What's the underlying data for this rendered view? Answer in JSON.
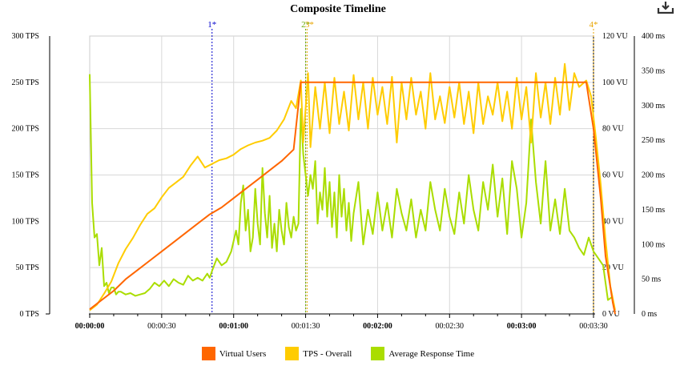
{
  "chart_data": {
    "type": "line",
    "title": "Composite Timeline",
    "x_axis": {
      "unit": "seconds",
      "range": [
        0,
        210
      ],
      "ticks": [
        {
          "value": 0,
          "label": "00:00:00",
          "bold": true
        },
        {
          "value": 30,
          "label": "00:00:30",
          "bold": false
        },
        {
          "value": 60,
          "label": "00:01:00",
          "bold": true
        },
        {
          "value": 90,
          "label": "00:01:30",
          "bold": false
        },
        {
          "value": 120,
          "label": "00:02:00",
          "bold": true
        },
        {
          "value": 150,
          "label": "00:02:30",
          "bold": false
        },
        {
          "value": 180,
          "label": "00:03:00",
          "bold": true
        },
        {
          "value": 210,
          "label": "00:03:30",
          "bold": false
        }
      ]
    },
    "y_axes": {
      "tps": {
        "range": [
          0,
          300
        ],
        "ticks": [
          "0 TPS",
          "50 TPS",
          "100 TPS",
          "150 TPS",
          "200 TPS",
          "250 TPS",
          "300 TPS"
        ]
      },
      "vu": {
        "range": [
          0,
          120
        ],
        "ticks": [
          "0 VU",
          "20 VU",
          "40 VU",
          "60 VU",
          "80 VU",
          "100 VU",
          "120 VU"
        ]
      },
      "ms": {
        "range": [
          0,
          400
        ],
        "ticks": [
          "0 ms",
          "50 ms",
          "100 ms",
          "150 ms",
          "200 ms",
          "250 ms",
          "300 ms",
          "350 ms",
          "400 ms"
        ]
      }
    },
    "markers": [
      {
        "label": "1*",
        "x": 51,
        "color": "#0000cc"
      },
      {
        "label": "2*",
        "x": 90,
        "color": "#66aa00"
      },
      {
        "label": "3*",
        "x": 90.6,
        "color": "#e8a400"
      },
      {
        "label": "4*",
        "x": 210,
        "color": "#e8a400"
      }
    ],
    "series": [
      {
        "name": "Virtual Users",
        "axis": "vu",
        "color": "#ff6600",
        "points": [
          [
            0,
            2
          ],
          [
            5,
            6
          ],
          [
            10,
            10
          ],
          [
            15,
            15
          ],
          [
            20,
            19
          ],
          [
            25,
            23
          ],
          [
            30,
            27
          ],
          [
            35,
            31
          ],
          [
            40,
            35
          ],
          [
            45,
            39
          ],
          [
            50,
            43
          ],
          [
            55,
            46
          ],
          [
            60,
            50
          ],
          [
            65,
            54
          ],
          [
            70,
            58
          ],
          [
            75,
            62
          ],
          [
            80,
            66
          ],
          [
            85,
            71
          ],
          [
            88,
            100
          ],
          [
            140,
            100
          ],
          [
            200,
            100
          ],
          [
            207,
            100
          ],
          [
            210,
            80
          ],
          [
            213,
            50
          ],
          [
            215,
            25
          ],
          [
            218,
            5
          ],
          [
            219,
            0
          ]
        ]
      },
      {
        "name": "TPS - Overall",
        "axis": "tps",
        "color": "#ffcc00",
        "points": [
          [
            0,
            4
          ],
          [
            3,
            10
          ],
          [
            6,
            22
          ],
          [
            9,
            35
          ],
          [
            12,
            55
          ],
          [
            15,
            70
          ],
          [
            18,
            82
          ],
          [
            21,
            96
          ],
          [
            24,
            108
          ],
          [
            27,
            114
          ],
          [
            30,
            126
          ],
          [
            33,
            136
          ],
          [
            36,
            142
          ],
          [
            39,
            148
          ],
          [
            42,
            160
          ],
          [
            45,
            170
          ],
          [
            48,
            158
          ],
          [
            51,
            162
          ],
          [
            54,
            166
          ],
          [
            57,
            168
          ],
          [
            60,
            172
          ],
          [
            63,
            178
          ],
          [
            66,
            182
          ],
          [
            69,
            185
          ],
          [
            72,
            187
          ],
          [
            75,
            190
          ],
          [
            78,
            198
          ],
          [
            81,
            210
          ],
          [
            84,
            230
          ],
          [
            86,
            222
          ],
          [
            88,
            252
          ],
          [
            89,
            185
          ],
          [
            91,
            260
          ],
          [
            92,
            180
          ],
          [
            94,
            245
          ],
          [
            96,
            200
          ],
          [
            98,
            250
          ],
          [
            100,
            195
          ],
          [
            102,
            255
          ],
          [
            104,
            205
          ],
          [
            106,
            240
          ],
          [
            108,
            198
          ],
          [
            110,
            258
          ],
          [
            112,
            210
          ],
          [
            114,
            250
          ],
          [
            116,
            200
          ],
          [
            118,
            255
          ],
          [
            120,
            215
          ],
          [
            122,
            245
          ],
          [
            124,
            205
          ],
          [
            126,
            256
          ],
          [
            128,
            185
          ],
          [
            130,
            250
          ],
          [
            132,
            210
          ],
          [
            134,
            255
          ],
          [
            136,
            215
          ],
          [
            138,
            240
          ],
          [
            140,
            200
          ],
          [
            142,
            260
          ],
          [
            144,
            210
          ],
          [
            146,
            235
          ],
          [
            148,
            206
          ],
          [
            150,
            245
          ],
          [
            152,
            212
          ],
          [
            154,
            250
          ],
          [
            156,
            205
          ],
          [
            158,
            240
          ],
          [
            160,
            195
          ],
          [
            162,
            250
          ],
          [
            164,
            205
          ],
          [
            166,
            235
          ],
          [
            168,
            215
          ],
          [
            170,
            250
          ],
          [
            172,
            208
          ],
          [
            174,
            240
          ],
          [
            176,
            200
          ],
          [
            178,
            255
          ],
          [
            180,
            210
          ],
          [
            182,
            245
          ],
          [
            184,
            185
          ],
          [
            186,
            260
          ],
          [
            188,
            212
          ],
          [
            190,
            250
          ],
          [
            192,
            205
          ],
          [
            194,
            255
          ],
          [
            196,
            215
          ],
          [
            198,
            270
          ],
          [
            200,
            220
          ],
          [
            202,
            260
          ],
          [
            204,
            245
          ],
          [
            207,
            252
          ],
          [
            209,
            235
          ],
          [
            211,
            190
          ],
          [
            213,
            140
          ],
          [
            215,
            80
          ],
          [
            217,
            30
          ],
          [
            219,
            4
          ]
        ]
      },
      {
        "name": "Average Response Time",
        "axis": "ms",
        "color": "#aadd00",
        "points": [
          [
            0,
            345
          ],
          [
            1,
            160
          ],
          [
            2,
            110
          ],
          [
            3,
            115
          ],
          [
            4,
            70
          ],
          [
            5,
            95
          ],
          [
            6,
            40
          ],
          [
            7,
            45
          ],
          [
            8,
            30
          ],
          [
            9,
            38
          ],
          [
            10,
            38
          ],
          [
            11,
            28
          ],
          [
            12,
            32
          ],
          [
            13,
            32
          ],
          [
            15,
            28
          ],
          [
            17,
            30
          ],
          [
            19,
            26
          ],
          [
            21,
            28
          ],
          [
            23,
            30
          ],
          [
            25,
            36
          ],
          [
            27,
            45
          ],
          [
            29,
            40
          ],
          [
            31,
            48
          ],
          [
            33,
            40
          ],
          [
            35,
            50
          ],
          [
            37,
            45
          ],
          [
            39,
            42
          ],
          [
            41,
            55
          ],
          [
            43,
            48
          ],
          [
            45,
            52
          ],
          [
            47,
            48
          ],
          [
            49,
            58
          ],
          [
            50,
            52
          ],
          [
            51,
            62
          ],
          [
            53,
            80
          ],
          [
            55,
            70
          ],
          [
            57,
            75
          ],
          [
            59,
            90
          ],
          [
            61,
            120
          ],
          [
            62,
            100
          ],
          [
            63,
            160
          ],
          [
            64,
            185
          ],
          [
            65,
            120
          ],
          [
            66,
            150
          ],
          [
            67,
            90
          ],
          [
            68,
            110
          ],
          [
            69,
            180
          ],
          [
            70,
            130
          ],
          [
            71,
            100
          ],
          [
            72,
            210
          ],
          [
            73,
            145
          ],
          [
            74,
            110
          ],
          [
            75,
            170
          ],
          [
            76,
            95
          ],
          [
            77,
            130
          ],
          [
            78,
            90
          ],
          [
            79,
            150
          ],
          [
            80,
            120
          ],
          [
            81,
            100
          ],
          [
            82,
            160
          ],
          [
            83,
            125
          ],
          [
            84,
            110
          ],
          [
            85,
            140
          ],
          [
            86,
            120
          ],
          [
            87,
            130
          ],
          [
            88,
            295
          ],
          [
            89,
            230
          ],
          [
            90,
            200
          ],
          [
            91,
            170
          ],
          [
            92,
            200
          ],
          [
            93,
            180
          ],
          [
            94,
            220
          ],
          [
            95,
            130
          ],
          [
            96,
            175
          ],
          [
            97,
            150
          ],
          [
            98,
            210
          ],
          [
            99,
            140
          ],
          [
            100,
            190
          ],
          [
            101,
            125
          ],
          [
            102,
            175
          ],
          [
            103,
            110
          ],
          [
            104,
            200
          ],
          [
            105,
            140
          ],
          [
            106,
            180
          ],
          [
            107,
            120
          ],
          [
            108,
            160
          ],
          [
            109,
            105
          ],
          [
            110,
            145
          ],
          [
            112,
            190
          ],
          [
            114,
            100
          ],
          [
            116,
            150
          ],
          [
            118,
            115
          ],
          [
            120,
            175
          ],
          [
            122,
            120
          ],
          [
            124,
            160
          ],
          [
            126,
            110
          ],
          [
            128,
            180
          ],
          [
            130,
            145
          ],
          [
            132,
            120
          ],
          [
            134,
            165
          ],
          [
            136,
            110
          ],
          [
            138,
            150
          ],
          [
            140,
            120
          ],
          [
            142,
            190
          ],
          [
            144,
            150
          ],
          [
            146,
            120
          ],
          [
            148,
            180
          ],
          [
            150,
            140
          ],
          [
            152,
            115
          ],
          [
            154,
            175
          ],
          [
            156,
            130
          ],
          [
            158,
            200
          ],
          [
            160,
            150
          ],
          [
            162,
            120
          ],
          [
            164,
            190
          ],
          [
            166,
            150
          ],
          [
            168,
            215
          ],
          [
            170,
            140
          ],
          [
            172,
            195
          ],
          [
            174,
            115
          ],
          [
            176,
            220
          ],
          [
            178,
            180
          ],
          [
            180,
            110
          ],
          [
            182,
            160
          ],
          [
            184,
            280
          ],
          [
            186,
            190
          ],
          [
            188,
            130
          ],
          [
            190,
            220
          ],
          [
            192,
            120
          ],
          [
            194,
            165
          ],
          [
            196,
            115
          ],
          [
            198,
            180
          ],
          [
            200,
            120
          ],
          [
            202,
            110
          ],
          [
            204,
            95
          ],
          [
            206,
            85
          ],
          [
            208,
            110
          ],
          [
            210,
            90
          ],
          [
            212,
            80
          ],
          [
            214,
            70
          ],
          [
            216,
            20
          ],
          [
            218,
            25
          ]
        ]
      }
    ],
    "legend": [
      "Virtual Users",
      "TPS - Overall",
      "Average Response Time"
    ],
    "legend_position": "bottom-center"
  },
  "toolbar": {
    "download_icon": "download-icon"
  }
}
